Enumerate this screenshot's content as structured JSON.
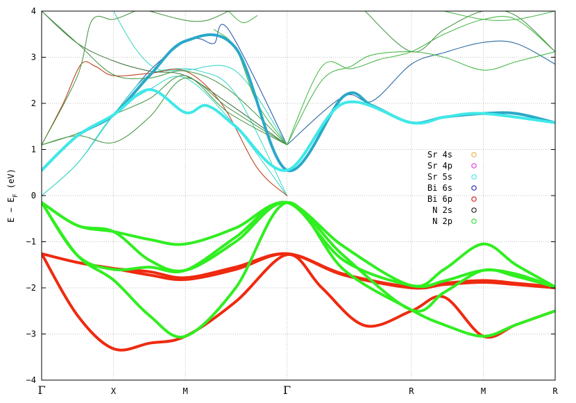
{
  "chart_data": {
    "type": "line",
    "title": "",
    "ylabel": "E − E",
    "ylabel_sub": "F",
    "ylabel_unit": " (eV)",
    "ylim": [
      -4,
      4
    ],
    "yticks": [
      -4,
      -3,
      -2,
      -1,
      0,
      1,
      2,
      3,
      4
    ],
    "grid": true,
    "legend_position": "right-center",
    "kpath": [
      {
        "label": "Γ",
        "x": 0,
        "big": true
      },
      {
        "label": "X",
        "x": 1,
        "big": false
      },
      {
        "label": "M",
        "x": 2,
        "big": false
      },
      {
        "label": "Γ",
        "x": 3.414,
        "big": true
      },
      {
        "label": "R",
        "x": 5.146,
        "big": false
      },
      {
        "label": "M",
        "x": 6.146,
        "big": false
      },
      {
        "label": "R",
        "x": 7.146,
        "big": false
      }
    ],
    "legend": [
      {
        "name": "Sr 4s",
        "color": "#e8b14a"
      },
      {
        "name": "Sr 4p",
        "color": "#e040e0"
      },
      {
        "name": "Sr 5s",
        "color": "#40e8e8"
      },
      {
        "name": "Bi 6s",
        "color": "#2a2ab0"
      },
      {
        "name": "Bi 6p",
        "color": "#d02020"
      },
      {
        "name": "N 2s",
        "color": "#202020"
      },
      {
        "name": "N 2p",
        "color": "#30e030"
      }
    ],
    "series": [
      {
        "style": "thick",
        "color": "#ee2a10",
        "points": [
          [
            0,
            -1.26
          ],
          [
            0.5,
            -2.6
          ],
          [
            1,
            -3.32
          ],
          [
            1.5,
            -3.2
          ],
          [
            2,
            -3.05
          ],
          [
            2.7,
            -2.3
          ],
          [
            3.414,
            -1.28
          ],
          [
            3.9,
            -2.0
          ],
          [
            4.5,
            -2.82
          ],
          [
            5.146,
            -2.5
          ],
          [
            5.6,
            -2.2
          ],
          [
            6.146,
            -3.05
          ],
          [
            6.6,
            -2.8
          ],
          [
            7.146,
            -2.5
          ]
        ]
      },
      {
        "style": "thick",
        "color": "#ee2a10",
        "points": [
          [
            0,
            -1.26
          ],
          [
            0.5,
            -1.45
          ],
          [
            1,
            -1.58
          ],
          [
            1.5,
            -1.72
          ],
          [
            2,
            -1.82
          ],
          [
            2.7,
            -1.6
          ],
          [
            3.414,
            -1.26
          ],
          [
            4.2,
            -1.7
          ],
          [
            5.146,
            -1.98
          ],
          [
            5.6,
            -1.9
          ],
          [
            6.146,
            -1.84
          ],
          [
            6.6,
            -1.9
          ],
          [
            7.146,
            -1.98
          ]
        ]
      },
      {
        "style": "thick",
        "color": "#ee2a10",
        "points": [
          [
            0,
            -1.26
          ],
          [
            0.5,
            -1.45
          ],
          [
            1,
            -1.58
          ],
          [
            1.5,
            -1.65
          ],
          [
            2,
            -1.78
          ],
          [
            2.7,
            -1.55
          ],
          [
            3.414,
            -1.26
          ],
          [
            4.2,
            -1.72
          ],
          [
            5.146,
            -2.0
          ],
          [
            5.6,
            -1.93
          ],
          [
            6.146,
            -1.88
          ],
          [
            6.6,
            -1.93
          ],
          [
            7.146,
            -2.0
          ]
        ]
      },
      {
        "style": "thick",
        "color": "#30ee20",
        "points": [
          [
            0,
            -0.15
          ],
          [
            0.5,
            -0.65
          ],
          [
            1,
            -0.78
          ],
          [
            1.5,
            -0.95
          ],
          [
            2,
            -1.05
          ],
          [
            2.7,
            -0.7
          ],
          [
            3.414,
            -0.15
          ],
          [
            4.2,
            -1.1
          ],
          [
            5.146,
            -1.95
          ],
          [
            5.6,
            -1.6
          ],
          [
            6.146,
            -1.05
          ],
          [
            6.6,
            -1.5
          ],
          [
            7.146,
            -1.98
          ]
        ]
      },
      {
        "style": "thick",
        "color": "#30ee20",
        "points": [
          [
            0,
            -0.15
          ],
          [
            0.5,
            -0.65
          ],
          [
            1,
            -0.78
          ],
          [
            1.5,
            -1.4
          ],
          [
            2,
            -1.62
          ],
          [
            2.7,
            -1.0
          ],
          [
            3.414,
            -0.15
          ],
          [
            4.2,
            -1.3
          ],
          [
            5.146,
            -2.48
          ],
          [
            5.6,
            -2.1
          ],
          [
            6.146,
            -1.62
          ],
          [
            6.6,
            -1.75
          ],
          [
            7.146,
            -1.98
          ]
        ]
      },
      {
        "style": "thick",
        "color": "#30ee20",
        "points": [
          [
            0,
            -0.15
          ],
          [
            0.5,
            -1.3
          ],
          [
            1,
            -1.83
          ],
          [
            1.5,
            -2.6
          ],
          [
            2,
            -3.05
          ],
          [
            2.7,
            -2.0
          ],
          [
            3.414,
            -0.15
          ],
          [
            4.2,
            -1.6
          ],
          [
            5.146,
            -2.48
          ],
          [
            5.6,
            -2.8
          ],
          [
            6.146,
            -3.05
          ],
          [
            6.6,
            -2.8
          ],
          [
            7.146,
            -2.5
          ]
        ]
      },
      {
        "style": "thick",
        "color": "#30ee20",
        "points": [
          [
            0,
            -0.15
          ],
          [
            0.5,
            -1.3
          ],
          [
            1,
            -1.6
          ],
          [
            1.5,
            -1.55
          ],
          [
            2,
            -1.62
          ],
          [
            2.7,
            -0.9
          ],
          [
            3.414,
            -0.15
          ],
          [
            4.2,
            -1.4
          ],
          [
            5.146,
            -1.95
          ],
          [
            5.6,
            -1.85
          ],
          [
            6.146,
            -1.62
          ],
          [
            6.6,
            -1.7
          ],
          [
            7.146,
            -1.98
          ]
        ]
      },
      {
        "style": "thick",
        "color": "#2aa8c8",
        "points": [
          [
            0,
            0.55
          ],
          [
            0.5,
            1.3
          ],
          [
            1,
            1.75
          ],
          [
            1.5,
            2.6
          ],
          [
            2,
            3.35
          ],
          [
            2.7,
            3.2
          ],
          [
            3.414,
            0.55
          ],
          [
            4.2,
            2.15
          ],
          [
            4.6,
            1.95
          ],
          [
            5.146,
            1.58
          ],
          [
            5.6,
            1.7
          ],
          [
            6.146,
            1.78
          ],
          [
            6.6,
            1.78
          ],
          [
            7.146,
            1.58
          ]
        ]
      },
      {
        "style": "thick",
        "color": "#40e8e8",
        "points": [
          [
            0,
            0.55
          ],
          [
            0.5,
            1.3
          ],
          [
            1,
            1.75
          ],
          [
            1.5,
            2.3
          ],
          [
            2,
            1.8
          ],
          [
            2.3,
            1.95
          ],
          [
            2.7,
            1.5
          ],
          [
            3.414,
            0.55
          ],
          [
            4.2,
            2.0
          ],
          [
            5.146,
            1.58
          ],
          [
            5.6,
            1.7
          ],
          [
            6.146,
            1.78
          ],
          [
            7.146,
            1.58
          ]
        ]
      },
      {
        "style": "thin",
        "color": "#2a6aa0",
        "points": [
          [
            3.414,
            1.1
          ],
          [
            4.2,
            2.15
          ],
          [
            4.6,
            2.05
          ],
          [
            5.146,
            2.85
          ],
          [
            5.6,
            3.1
          ],
          [
            6.146,
            3.32
          ],
          [
            6.6,
            3.3
          ],
          [
            7.146,
            2.85
          ]
        ]
      },
      {
        "style": "thin",
        "color": "#2a5aa8",
        "points": [
          [
            1,
            1.75
          ],
          [
            1.5,
            2.7
          ],
          [
            2,
            3.35
          ],
          [
            2.2,
            3.4
          ],
          [
            2.4,
            3.3
          ],
          [
            2.6,
            3.6
          ],
          [
            3.414,
            1.1
          ]
        ]
      },
      {
        "style": "thin",
        "color": "#40d8c8",
        "points": [
          [
            0,
            0.0
          ],
          [
            0.5,
            0.7
          ],
          [
            1,
            1.75
          ],
          [
            1.5,
            2.3
          ],
          [
            2,
            2.55
          ],
          [
            2.7,
            1.5
          ],
          [
            3.414,
            0.0
          ]
        ]
      },
      {
        "style": "thin",
        "color": "#40d8c8",
        "points": [
          [
            0,
            0.0
          ],
          [
            0.5,
            0.7
          ],
          [
            1,
            1.75
          ],
          [
            1.4,
            2.5
          ],
          [
            1.7,
            2.72
          ],
          [
            2.2,
            2.7
          ],
          [
            2.7,
            2.2
          ],
          [
            3.414,
            0.0
          ]
        ]
      },
      {
        "style": "thin",
        "color": "#40d8c8",
        "points": [
          [
            1,
            4.0
          ],
          [
            1.3,
            3.2
          ],
          [
            1.6,
            2.75
          ],
          [
            2,
            2.72
          ],
          [
            2.7,
            2.7
          ],
          [
            3.414,
            1.1
          ]
        ]
      },
      {
        "style": "thin",
        "color": "#c04020",
        "points": [
          [
            0,
            1.1
          ],
          [
            0.3,
            2.0
          ],
          [
            0.55,
            2.85
          ],
          [
            0.75,
            2.8
          ],
          [
            1,
            2.6
          ],
          [
            1.5,
            2.65
          ],
          [
            2,
            2.7
          ],
          [
            2.5,
            2.0
          ],
          [
            3.0,
            0.6
          ],
          [
            3.414,
            0.0
          ]
        ]
      },
      {
        "style": "thin",
        "color": "#4a9a4a",
        "points": [
          [
            0,
            1.1
          ],
          [
            0.5,
            1.35
          ],
          [
            1,
            1.75
          ],
          [
            1.5,
            2.1
          ],
          [
            2,
            2.6
          ],
          [
            2.6,
            1.8
          ],
          [
            3.414,
            1.1
          ]
        ]
      },
      {
        "style": "thin",
        "color": "#4a9a4a",
        "points": [
          [
            0,
            1.1
          ],
          [
            0.5,
            1.3
          ],
          [
            1,
            1.15
          ],
          [
            1.5,
            1.7
          ],
          [
            2,
            2.55
          ],
          [
            2.6,
            1.9
          ],
          [
            3.414,
            1.1
          ]
        ]
      },
      {
        "style": "thin",
        "color": "#4a7a4a",
        "points": [
          [
            0,
            4.0
          ],
          [
            0.5,
            3.3
          ],
          [
            1,
            2.92
          ],
          [
            1.5,
            2.7
          ],
          [
            2,
            2.6
          ],
          [
            2.6,
            2.0
          ],
          [
            3.414,
            1.1
          ]
        ]
      },
      {
        "style": "thin",
        "color": "#4a9a4a",
        "points": [
          [
            0,
            4.0
          ],
          [
            0.5,
            3.3
          ],
          [
            1,
            2.62
          ],
          [
            1.5,
            2.55
          ],
          [
            2,
            2.7
          ],
          [
            2.6,
            2.3
          ],
          [
            3.414,
            1.1
          ]
        ]
      },
      {
        "style": "thin",
        "color": "#4a9a4a",
        "points": [
          [
            0,
            1.1
          ],
          [
            0.5,
            2.6
          ],
          [
            0.7,
            3.8
          ],
          [
            1,
            3.82
          ],
          [
            1.3,
            4.0
          ]
        ]
      },
      {
        "style": "thin",
        "color": "#4a9a4a",
        "points": [
          [
            1.5,
            4.0
          ],
          [
            2,
            3.8
          ],
          [
            2.3,
            3.8
          ],
          [
            2.6,
            4.0
          ]
        ]
      },
      {
        "style": "thin",
        "color": "#4ab84a",
        "points": [
          [
            2.4,
            3.6
          ],
          [
            2.7,
            3.2
          ],
          [
            3.0,
            2.0
          ],
          [
            3.414,
            1.1
          ]
        ]
      },
      {
        "style": "thin",
        "color": "#4ab84a",
        "points": [
          [
            2.6,
            4.0
          ],
          [
            2.8,
            3.75
          ],
          [
            3.0,
            3.9
          ]
        ]
      },
      {
        "style": "thin",
        "color": "#4ab84a",
        "points": [
          [
            3.414,
            1.1
          ],
          [
            3.9,
            2.5
          ],
          [
            4.3,
            2.8
          ],
          [
            4.6,
            3.05
          ],
          [
            5.146,
            3.12
          ],
          [
            5.6,
            3.0
          ],
          [
            6.146,
            2.72
          ],
          [
            6.6,
            2.9
          ],
          [
            7.146,
            3.12
          ]
        ]
      },
      {
        "style": "thin",
        "color": "#4ab84a",
        "points": [
          [
            3.414,
            1.1
          ],
          [
            3.9,
            2.8
          ],
          [
            4.3,
            2.75
          ],
          [
            4.7,
            2.95
          ],
          [
            5.146,
            3.12
          ],
          [
            5.6,
            3.5
          ],
          [
            6.146,
            3.82
          ],
          [
            6.6,
            3.82
          ],
          [
            7.146,
            3.12
          ]
        ]
      },
      {
        "style": "thin",
        "color": "#4a9a4a",
        "points": [
          [
            4.5,
            4.0
          ],
          [
            5.146,
            3.12
          ],
          [
            5.6,
            3.6
          ],
          [
            6.146,
            4.0
          ],
          [
            6.6,
            3.9
          ],
          [
            7.146,
            3.12
          ]
        ]
      },
      {
        "style": "thin",
        "color": "#4ab84a",
        "points": [
          [
            5.6,
            4.0
          ],
          [
            6.146,
            3.82
          ],
          [
            6.6,
            3.82
          ],
          [
            7.146,
            4.0
          ]
        ]
      }
    ]
  }
}
